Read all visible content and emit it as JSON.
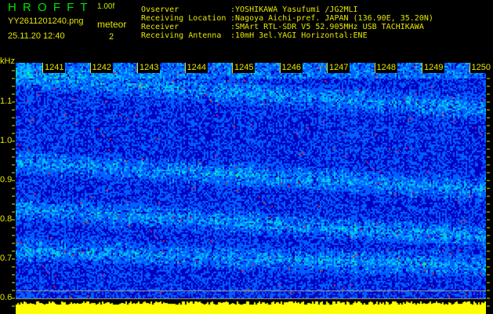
{
  "header": {
    "app_title": "H R O F F T",
    "version": "1.00f",
    "filename": "YY2611201240.png",
    "datetime": "25.11.20 12:40",
    "mode_label": "meteor",
    "count": "2"
  },
  "info": [
    {
      "key": "Ovserver",
      "value": ":YOSHIKAWA Yasufumi /JG2MLI"
    },
    {
      "key": "Receiving Location",
      "value": ":Nagoya Aichi-pref. JAPAN (136.90E, 35.20N)"
    },
    {
      "key": "Receiver",
      "value": ":SMArt RTL-SDR V5 52.905MHz USB TACHIKAWA"
    },
    {
      "key": "Receiving Antenna",
      "value": ":10mH 3el.YAGI Horizontal:ENE"
    }
  ],
  "chart_data": {
    "type": "heatmap",
    "title": "",
    "ylabel": "kHz",
    "y_ticks": [
      "1.1",
      "1.0",
      "0.9",
      "0.8",
      "0.7",
      "0.6"
    ],
    "ylim": [
      0.6,
      1.2
    ],
    "x_ticks": [
      "1241",
      "1242",
      "1243",
      "1244",
      "1245",
      "1246",
      "1247",
      "1248",
      "1249",
      "1250"
    ],
    "colormap": [
      "#000030",
      "#0000c0",
      "#0060ff",
      "#00c0ff",
      "#00ff80",
      "#ffff00",
      "#ff2000"
    ],
    "bottom_level_color": "#ffff00",
    "reference_line_color": "#a0a0a0"
  }
}
